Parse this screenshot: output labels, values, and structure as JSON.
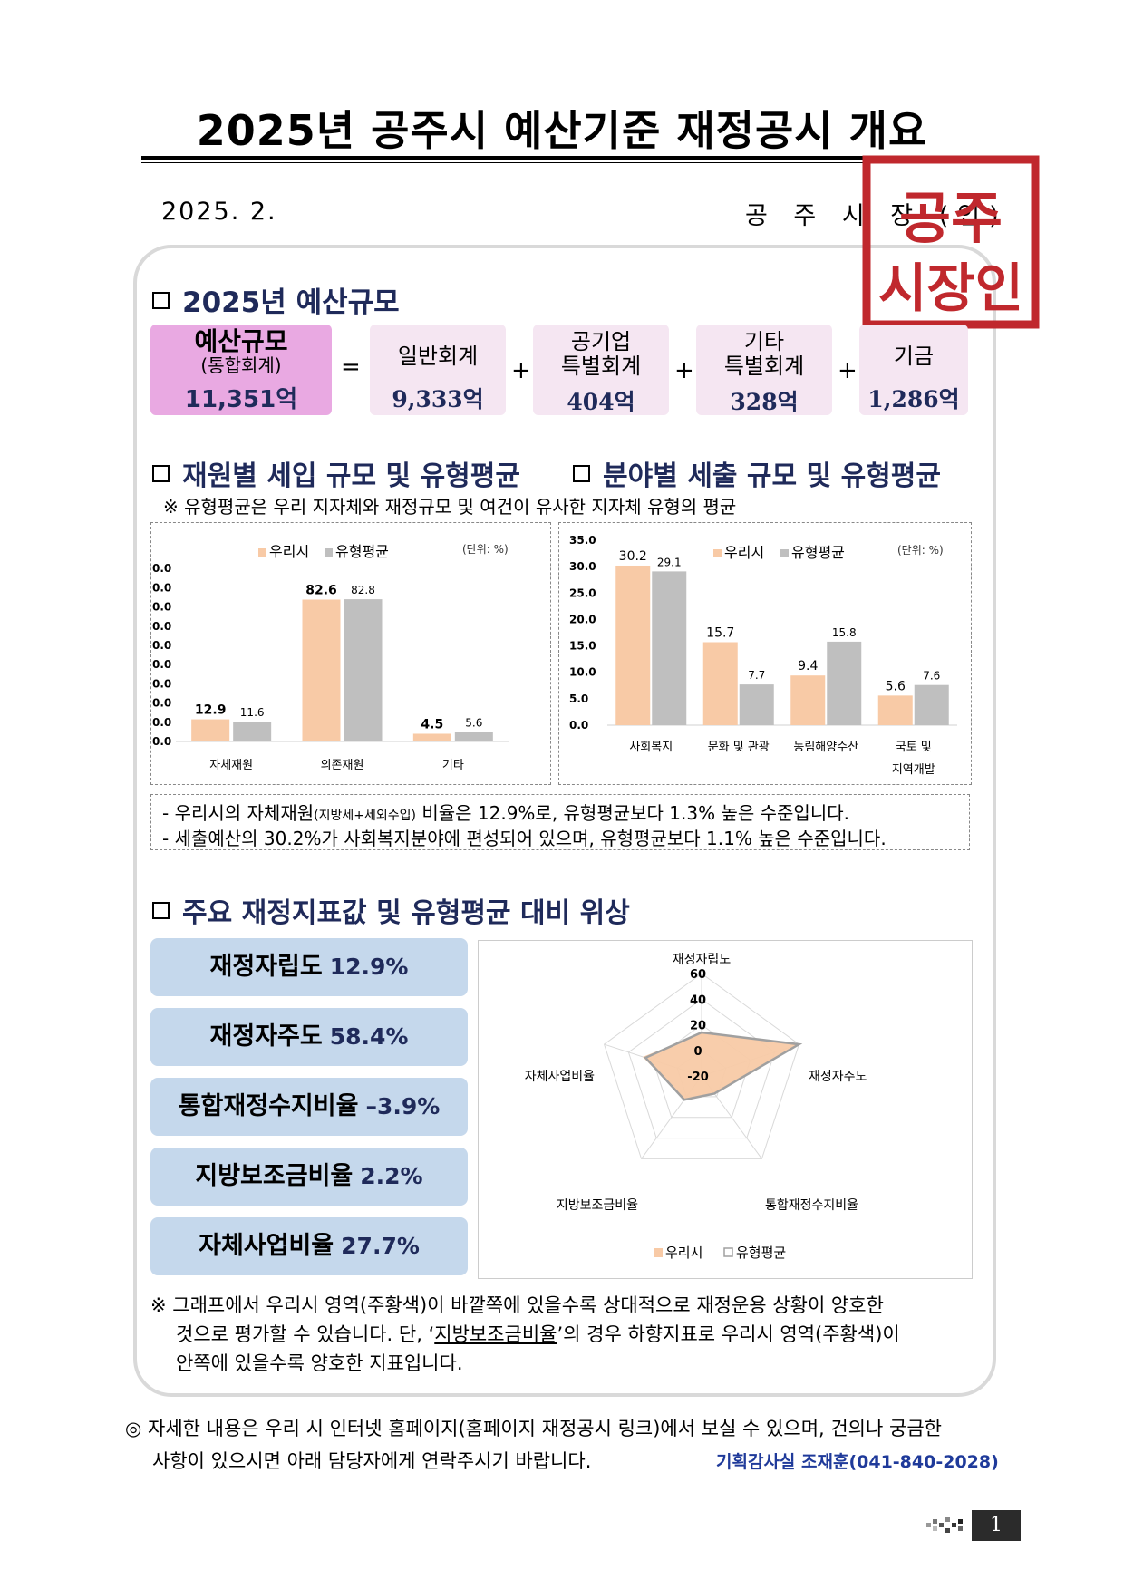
{
  "title": "2025년 공주시 예산기준 재정공시 개요",
  "date": "2025. 2.",
  "issuer": "공 주 시 장 (인)",
  "seal": {
    "line1": "공주",
    "line2": "시장인"
  },
  "budget": {
    "heading": "2025년 예산규모",
    "total": {
      "label": "예산규모",
      "sublabel": "(통합회계)",
      "value": "11,351억"
    },
    "items": [
      {
        "label1": "일반회계",
        "label2": "",
        "value": "9,333억"
      },
      {
        "label1": "공기업",
        "label2": "특별회계",
        "value": "404억"
      },
      {
        "label1": "기타",
        "label2": "특별회계",
        "value": "328억"
      },
      {
        "label1": "기금",
        "label2": "",
        "value": "1,286억"
      }
    ],
    "eq": "=",
    "plus": "+"
  },
  "section2": {
    "heading_left": "재원별 세입 규모 및 유형평균",
    "heading_right": "분야별 세출 규모 및 유형평균",
    "note": "※ 유형평균은 우리 지자체와 재정규모 및 여건이 유사한 지자체 유형의 평균"
  },
  "colors": {
    "ours": "#f8caa6",
    "avg": "#bfbfbf",
    "kpi_bg": "#c5d8ec",
    "navy": "#1f2a5a",
    "seal": "#c0282d"
  },
  "chart_data": [
    {
      "type": "bar",
      "categories": [
        "자체재원",
        "의존재원",
        "기타"
      ],
      "series": [
        {
          "name": "우리시",
          "values": [
            12.9,
            82.6,
            4.5
          ]
        },
        {
          "name": "유형평균",
          "values": [
            11.6,
            82.8,
            5.6
          ]
        }
      ],
      "ytick_labels": [
        "0.0",
        "0.0",
        "0.0",
        "0.0",
        "0.0",
        "0.0",
        "0.0",
        "0.0",
        "0.0",
        "0.0"
      ],
      "unit": "(단위: %)",
      "ylim": [
        0,
        95
      ],
      "legend": "top"
    },
    {
      "type": "bar",
      "categories": [
        "사회복지",
        "문화 및 관광",
        "농림해양수산",
        "국토 및 지역개발"
      ],
      "category_lines": [
        [
          "사회복지"
        ],
        [
          "문화 및 관광"
        ],
        [
          "농림해양수산"
        ],
        [
          "국토 및",
          "지역개발"
        ]
      ],
      "series": [
        {
          "name": "우리시",
          "values": [
            30.2,
            15.7,
            9.4,
            5.6
          ]
        },
        {
          "name": "유형평균",
          "values": [
            29.1,
            7.7,
            15.8,
            7.6
          ]
        }
      ],
      "yticks": [
        "0.0",
        "5.0",
        "10.0",
        "15.0",
        "20.0",
        "25.0",
        "30.0",
        "35.0"
      ],
      "unit": "(단위: %)",
      "ylim": [
        0,
        35
      ],
      "legend": "top"
    },
    {
      "type": "radar",
      "axes": [
        "재정자립도",
        "재정자주도",
        "통합재정수지비율",
        "지방보조금비율",
        "자체사업비율"
      ],
      "rticks": [
        "-20",
        "0",
        "20",
        "40",
        "60"
      ],
      "rlim": [
        -20,
        60
      ],
      "series": [
        {
          "name": "우리시",
          "values": [
            12.9,
            58.4,
            -3.9,
            2.2,
            27.7
          ]
        },
        {
          "name": "유형평균",
          "values": [
            14.0,
            60.0,
            -3.0,
            3.0,
            26.0
          ]
        }
      ],
      "legend": "bottom"
    }
  ],
  "summary": [
    {
      "pre": "- 우리시의 자체재원",
      "small": "(지방세+세외수입)",
      "post": " 비율은 12.9%로, 유형평균보다 1.3% 높은 수준입니다."
    },
    {
      "pre": "- 세출예산의 30.2%가 사회복지분야에 편성되어 있으며, 유형평균보다 1.1% 높은 수준입니다.",
      "small": "",
      "post": ""
    }
  ],
  "section3": {
    "heading": "주요 재정지표값 및 유형평균 대비 위상",
    "kpis": [
      {
        "label": "재정자립도",
        "value": "12.9%"
      },
      {
        "label": "재정자주도",
        "value": "58.4%"
      },
      {
        "label": "통합재정수지비율",
        "value": "–3.9%"
      },
      {
        "label": "지방보조금비율",
        "value": "2.2%"
      },
      {
        "label": "자체사업비율",
        "value": "27.7%"
      }
    ],
    "note_line1": "※ 그래프에서 우리시 영역(주황색)이 바깥쪽에 있을수록 상대적으로 재정운용 상황이 양호한",
    "note_line2a": "것으로 평가할 수 있습니다. 단, ‘",
    "note_line2u": "지방보조금비율",
    "note_line2b": "’의 경우 하향지표로 우리시 영역(주황색)이",
    "note_line3": "안쪽에 있을수록 양호한 지표입니다."
  },
  "footer": {
    "line1": "◎ 자세한 내용은 우리 시 인터넷 홈페이지(홈페이지 재정공시 링크)에서 보실 수 있으며, 건의나 궁금한",
    "line2": "사항이 있으시면 아래 담당자에게 연락주시기 바랍니다.",
    "contact": "기획감사실 조재훈(041-840-2028)",
    "page": "1"
  }
}
